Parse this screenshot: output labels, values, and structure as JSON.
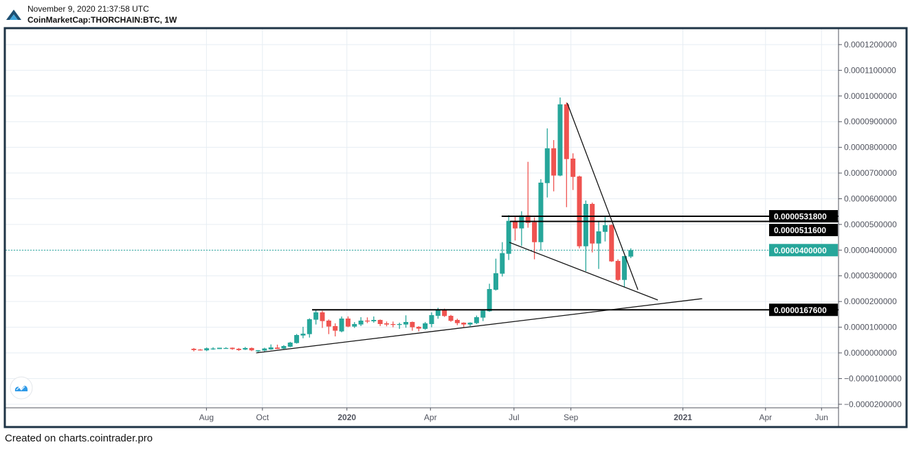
{
  "header": {
    "timestamp": "November 9, 2020 21:37:58 UTC",
    "symbol": "CoinMarketCap:THORCHAIN:BTC, 1W"
  },
  "footer": {
    "text": "Created on charts.cointrader.pro"
  },
  "colors": {
    "up": "#26a69a",
    "down": "#ef5350",
    "grid": "#e6edf3",
    "frame": "#1f3446",
    "last_price": "#26a69a"
  },
  "chart_data": {
    "type": "candlestick",
    "title": "CoinMarketCap:THORCHAIN:BTC, 1W",
    "price_unit": "satoshi (1e-8 BTC)",
    "interval": "1W",
    "first_candle_date": "2019-07-22",
    "candles_ohlc": [
      [
        160,
        190,
        60,
        110
      ],
      [
        130,
        150,
        90,
        100
      ],
      [
        100,
        210,
        70,
        180
      ],
      [
        150,
        220,
        120,
        170
      ],
      [
        150,
        200,
        150,
        200
      ],
      [
        180,
        220,
        160,
        190
      ],
      [
        200,
        210,
        120,
        150
      ],
      [
        160,
        190,
        80,
        110
      ],
      [
        130,
        230,
        110,
        190
      ],
      [
        190,
        210,
        70,
        100
      ],
      [
        60,
        110,
        30,
        100
      ],
      [
        90,
        200,
        60,
        170
      ],
      [
        134,
        330,
        120,
        214
      ],
      [
        206,
        320,
        150,
        152
      ],
      [
        168,
        300,
        150,
        267
      ],
      [
        240,
        430,
        220,
        401
      ],
      [
        383,
        735,
        360,
        695
      ],
      [
        676,
        1016,
        570,
        748
      ],
      [
        730,
        1345,
        596,
        1310
      ],
      [
        1292,
        1684,
        1105,
        1578
      ],
      [
        1578,
        1639,
        971,
        1238
      ],
      [
        1257,
        1300,
        730,
        1025
      ],
      [
        1043,
        1150,
        642,
        864
      ],
      [
        837,
        1417,
        800,
        1337
      ],
      [
        1337,
        1420,
        1000,
        1024
      ],
      [
        1024,
        1200,
        971,
        1123
      ],
      [
        1105,
        1390,
        1043,
        1257
      ],
      [
        1257,
        1381,
        1158,
        1240
      ],
      [
        1230,
        1417,
        1176,
        1283
      ],
      [
        1283,
        1300,
        1043,
        1123
      ],
      [
        1150,
        1221,
        1034,
        1105
      ],
      [
        1123,
        1221,
        997,
        1105
      ],
      [
        1105,
        1176,
        936,
        1123
      ],
      [
        1105,
        1462,
        980,
        1203
      ],
      [
        1203,
        1220,
        864,
        998
      ],
      [
        1016,
        1040,
        837,
        945
      ],
      [
        936,
        1203,
        900,
        1150
      ],
      [
        1123,
        1577,
        998,
        1470
      ],
      [
        1443,
        1756,
        1328,
        1693
      ],
      [
        1693,
        1720,
        1400,
        1435
      ],
      [
        1443,
        1480,
        1212,
        1248
      ],
      [
        1283,
        1330,
        1078,
        1158
      ],
      [
        1176,
        1190,
        1007,
        1105
      ],
      [
        1105,
        1190,
        1040,
        1176
      ],
      [
        1158,
        1453,
        1120,
        1390
      ],
      [
        1372,
        1660,
        1238,
        1648
      ],
      [
        1622,
        2692,
        1600,
        2485
      ],
      [
        2458,
        3669,
        2424,
        3100
      ],
      [
        3083,
        4310,
        2974,
        3884
      ],
      [
        3857,
        5363,
        3616,
        5139
      ],
      [
        5139,
        5337,
        4374,
        4845
      ],
      [
        4845,
        5514,
        4161,
        5353
      ],
      [
        5353,
        7437,
        4872,
        5059
      ],
      [
        5085,
        5273,
        3642,
        4310
      ],
      [
        4310,
        6761,
        3982,
        6627
      ],
      [
        6609,
        8738,
        6048,
        7963
      ],
      [
        7963,
        8284,
        6288,
        6903
      ],
      [
        6903,
        9941,
        6876,
        9674
      ],
      [
        9674,
        9746,
        5673,
        7544
      ],
      [
        7563,
        7768,
        6341,
        6850
      ],
      [
        6868,
        6900,
        4070,
        4150
      ],
      [
        4150,
        5933,
        3180,
        5799
      ],
      [
        5799,
        5850,
        3910,
        4257
      ],
      [
        4257,
        5096,
        3268,
        4730
      ],
      [
        4711,
        5337,
        4337,
        4970
      ],
      [
        4979,
        5000,
        3540,
        3562
      ],
      [
        3580,
        3642,
        2798,
        2840
      ],
      [
        2840,
        3768,
        2557,
        3768
      ],
      [
        3749,
        4070,
        3688,
        4000
      ]
    ],
    "last_price": 4000,
    "last_price_label": "0.0000400000",
    "y_range": [
      -2200,
      12600
    ],
    "y_ticks": [
      {
        "value": 12000,
        "label": "0.0001200000"
      },
      {
        "value": 11000,
        "label": "0.0001100000"
      },
      {
        "value": 10000,
        "label": "0.0001000000"
      },
      {
        "value": 9000,
        "label": "0.0000900000"
      },
      {
        "value": 8000,
        "label": "0.0000800000"
      },
      {
        "value": 7000,
        "label": "0.0000700000"
      },
      {
        "value": 6000,
        "label": "0.0000600000"
      },
      {
        "value": 5000,
        "label": "0.0000500000"
      },
      {
        "value": 4000,
        "label": "0.0000400000"
      },
      {
        "value": 3000,
        "label": "0.0000300000"
      },
      {
        "value": 2000,
        "label": "0.0000200000"
      },
      {
        "value": 1000,
        "label": "0.0000100000"
      },
      {
        "value": 0,
        "label": "0.0000000000"
      },
      {
        "value": -1000,
        "label": "−0.0000100000"
      },
      {
        "value": -2000,
        "label": "−0.0000200000"
      }
    ],
    "x_ticks": [
      {
        "date": "2019-08-01",
        "label": "Aug",
        "bold": false
      },
      {
        "date": "2019-10-01",
        "label": "Oct",
        "bold": false
      },
      {
        "date": "2020-01-01",
        "label": "2020",
        "bold": true
      },
      {
        "date": "2020-04-01",
        "label": "Apr",
        "bold": false
      },
      {
        "date": "2020-07-01",
        "label": "Jul",
        "bold": false
      },
      {
        "date": "2020-09-01",
        "label": "Sep",
        "bold": false
      },
      {
        "date": "2021-01-01",
        "label": "2021",
        "bold": true
      },
      {
        "date": "2021-04-01",
        "label": "Apr",
        "bold": false
      },
      {
        "date": "2021-06-01",
        "label": "Jun",
        "bold": false
      }
    ],
    "horizontal_levels": [
      {
        "price": 5318,
        "label": "0.0000531800",
        "from_index": 47.9
      },
      {
        "price": 5116,
        "label": "0.0000511600",
        "from_index": 49.2
      },
      {
        "price": 1676,
        "label": "0.0000167600",
        "from_index": 18.4
      }
    ],
    "trend_lines": [
      {
        "name": "descending-resistance",
        "from": [
          58.1,
          9727
        ],
        "to": [
          69.1,
          2459
        ]
      },
      {
        "name": "wedge-lower",
        "from": [
          49.1,
          4302
        ],
        "to": [
          72.2,
          2058
        ]
      },
      {
        "name": "ascending-support",
        "from": [
          9.7,
          0
        ],
        "to": [
          79.1,
          2111
        ]
      }
    ]
  }
}
